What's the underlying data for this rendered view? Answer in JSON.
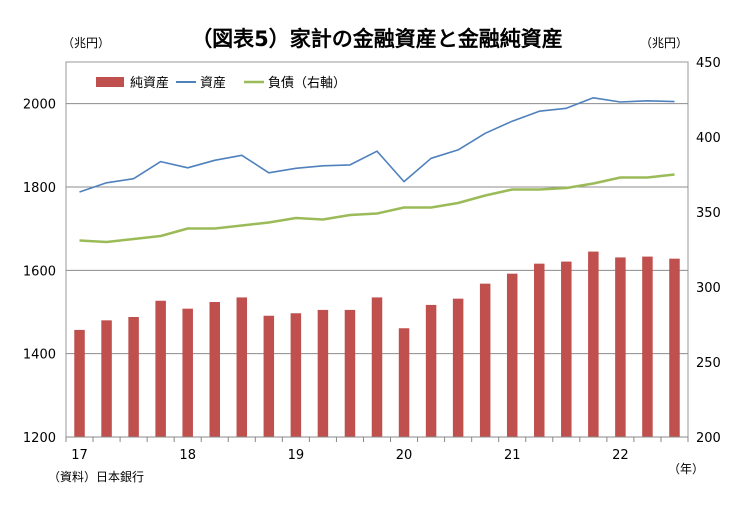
{
  "chart_data": {
    "type": "bar+line",
    "title": "（図表5）家計の金融資産と金融純資産",
    "left_unit": "（兆円）",
    "right_unit": "（兆円）",
    "x_unit": "（年）",
    "source": "（資料）日本銀行",
    "left_axis": {
      "min": 1200,
      "max": 2100,
      "ticks": [
        1200,
        1400,
        1600,
        1800,
        2000
      ]
    },
    "right_axis": {
      "min": 200,
      "max": 450,
      "ticks": [
        200,
        250,
        300,
        350,
        400,
        450
      ]
    },
    "gridlines": [
      1400,
      1600,
      1800,
      2000
    ],
    "x_tick_labels": [
      {
        "label": "17",
        "index": 0
      },
      {
        "label": "18",
        "index": 4
      },
      {
        "label": "19",
        "index": 8
      },
      {
        "label": "20",
        "index": 12
      },
      {
        "label": "21",
        "index": 16
      },
      {
        "label": "22",
        "index": 20
      }
    ],
    "series": [
      {
        "name": "純資産",
        "kind": "bar",
        "axis": "left",
        "color": "#c0504d",
        "values": [
          1457,
          1480,
          1488,
          1527,
          1508,
          1524,
          1535,
          1491,
          1497,
          1505,
          1505,
          1535,
          1461,
          1517,
          1532,
          1568,
          1592,
          1616,
          1621,
          1645,
          1631,
          1633,
          1628
        ]
      },
      {
        "name": "資産",
        "kind": "line",
        "axis": "left",
        "color": "#4f81bd",
        "values": [
          1788,
          1810,
          1820,
          1861,
          1846,
          1864,
          1876,
          1834,
          1845,
          1851,
          1853,
          1886,
          1813,
          1869,
          1889,
          1929,
          1958,
          1982,
          1989,
          2014,
          2004,
          2007,
          2005
        ]
      },
      {
        "name": "負債（右軸）",
        "kind": "line",
        "axis": "right",
        "color": "#9bbb59",
        "values": [
          331,
          330,
          332,
          334,
          339,
          339,
          341,
          343,
          346,
          345,
          348,
          349,
          353,
          353,
          356,
          361,
          365,
          365,
          366,
          369,
          373,
          373,
          375
        ]
      }
    ]
  }
}
